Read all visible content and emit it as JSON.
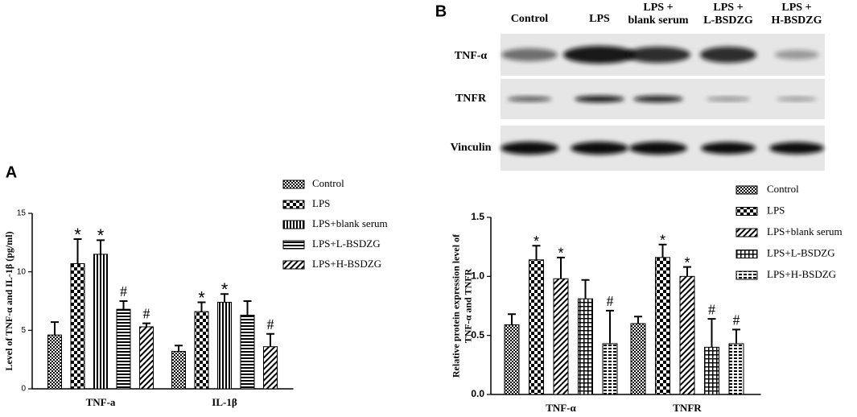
{
  "chart_data": [
    {
      "type": "bar",
      "panel_label": "A",
      "ylabel": [
        "Level of TNF-α and IL-1β (pg/ml)"
      ],
      "categories": [
        "TNF-a",
        "IL-1β"
      ],
      "ylim": [
        0,
        15
      ],
      "yticks": [
        0,
        5,
        10,
        15
      ],
      "series": [
        {
          "name": "Control",
          "color": "#000000",
          "pattern": "fine-checker",
          "values": [
            4.6,
            3.2
          ],
          "errors": [
            1.1,
            0.5
          ],
          "markers": [
            null,
            null
          ]
        },
        {
          "name": "LPS",
          "color": "#000000",
          "pattern": "checker",
          "values": [
            10.7,
            6.6
          ],
          "errors": [
            2.1,
            0.8
          ],
          "markers": [
            "*",
            "*"
          ]
        },
        {
          "name": "LPS+blank serum",
          "color": "#000000",
          "pattern": "vertical",
          "values": [
            11.5,
            7.4
          ],
          "errors": [
            1.2,
            0.7
          ],
          "markers": [
            "*",
            "*"
          ]
        },
        {
          "name": "LPS+L-BSDZG",
          "color": "#000000",
          "pattern": "horizontal",
          "values": [
            6.8,
            6.3
          ],
          "errors": [
            0.7,
            1.2
          ],
          "markers": [
            "#",
            null
          ]
        },
        {
          "name": "LPS+H-BSDZG",
          "color": "#000000",
          "pattern": "diagonal",
          "values": [
            5.3,
            3.6
          ],
          "errors": [
            0.3,
            1.1
          ],
          "markers": [
            "#",
            "#"
          ]
        }
      ]
    },
    {
      "type": "bar",
      "panel_label": "B",
      "ylabel": [
        "Relative protein expression level of",
        "TNF-α and TNFR"
      ],
      "categories": [
        "TNF-α",
        "TNFR"
      ],
      "ylim": [
        0,
        1.5
      ],
      "yticks": [
        {
          "value": 0,
          "label": "0.0"
        },
        0.5,
        {
          "value": 1,
          "label": "1.0"
        },
        1.5
      ],
      "series": [
        {
          "name": "Control",
          "color": "#000000",
          "pattern": "fine-checker",
          "values": [
            0.59,
            0.6
          ],
          "errors": [
            0.09,
            0.06
          ],
          "markers": [
            null,
            null
          ]
        },
        {
          "name": "LPS",
          "color": "#000000",
          "pattern": "checker",
          "values": [
            1.14,
            1.16
          ],
          "errors": [
            0.12,
            0.11
          ],
          "markers": [
            "*",
            "*"
          ]
        },
        {
          "name": "LPS+blank serum",
          "color": "#000000",
          "pattern": "diagonal",
          "values": [
            0.98,
            1.0
          ],
          "errors": [
            0.18,
            0.08
          ],
          "markers": [
            "*",
            "*"
          ]
        },
        {
          "name": "LPS+L-BSDZG",
          "color": "#000000",
          "pattern": "grid",
          "values": [
            0.81,
            0.4
          ],
          "errors": [
            0.16,
            0.24
          ],
          "markers": [
            null,
            "#"
          ]
        },
        {
          "name": "LPS+H-BSDZG",
          "color": "#000000",
          "pattern": "dashed",
          "values": [
            0.43,
            0.43
          ],
          "errors": [
            0.28,
            0.12
          ],
          "markers": [
            "#",
            "#"
          ]
        }
      ]
    }
  ],
  "blot": {
    "lanes": [
      [
        "Control"
      ],
      [
        "LPS"
      ],
      [
        "LPS +",
        "blank serum"
      ],
      [
        "LPS +",
        "L-BSDZG"
      ],
      [
        "LPS +",
        "H-BSDZG"
      ]
    ],
    "rows": [
      "TNF-α",
      "TNFR",
      "Vinculin"
    ]
  }
}
